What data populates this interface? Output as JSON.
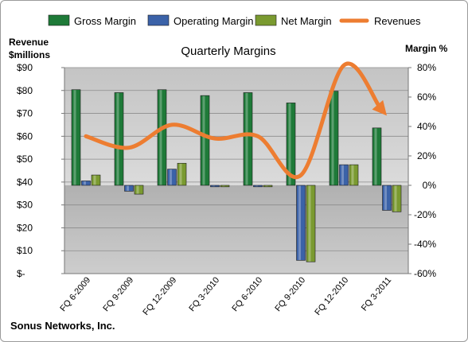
{
  "chart_data": {
    "type": "bar",
    "title": "Quarterly Margins",
    "categories": [
      "FQ 6-2009",
      "FQ 9-2009",
      "FQ 12-2009",
      "FQ 3-2010",
      "FQ 6-2010",
      "FQ 9-2010",
      "FQ 12-2010",
      "FQ 3-2011"
    ],
    "series": [
      {
        "name": "Gross Margin",
        "axis": "right",
        "unit": "%",
        "color": "#1e7a38",
        "values": [
          65,
          63,
          65,
          61,
          63,
          56,
          64,
          39
        ]
      },
      {
        "name": "Operating Margin",
        "axis": "right",
        "unit": "%",
        "color": "#3b62a8",
        "values": [
          3,
          -4,
          11,
          -1,
          -1,
          -51,
          14,
          -17
        ]
      },
      {
        "name": "Net Margin",
        "axis": "right",
        "unit": "%",
        "color": "#7a9a30",
        "values": [
          7,
          -6,
          15,
          -1,
          -1,
          -52,
          14,
          -18
        ]
      },
      {
        "name": "Revenues",
        "axis": "left",
        "type": "line",
        "unit": "$millions",
        "color": "#ed7d31",
        "values": [
          60,
          55,
          65,
          59,
          60,
          43,
          91,
          69
        ]
      }
    ],
    "ylabel_left": "Revenue\n$millions",
    "ylabel_right": "Margin %",
    "ylim_left": [
      0,
      90
    ],
    "yticks_left": [
      "$-",
      "$10",
      "$20",
      "$30",
      "$40",
      "$50",
      "$60",
      "$70",
      "$80",
      "$90"
    ],
    "ylim_right": [
      -60,
      80
    ],
    "yticks_right": [
      "-60%",
      "-40%",
      "-20%",
      "0%",
      "20%",
      "40%",
      "60%",
      "80%"
    ],
    "grid": true,
    "legend_position": "top",
    "footer": "Sonus Networks, Inc."
  }
}
